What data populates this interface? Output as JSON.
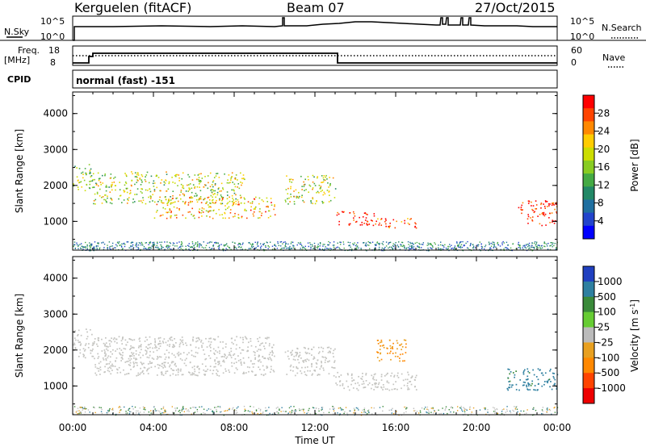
{
  "header": {
    "station": "Kerguelen (fitACF)",
    "beam": "Beam 07",
    "date": "27/Oct/2015"
  },
  "ancillary": {
    "nsky_label": "N.Sky",
    "nsearch_label": "N.Search",
    "freq_label_1": "Freq.",
    "freq_label_2": "[MHz]",
    "nave_label": "Nave",
    "cpid_label": "CPID",
    "cpid_value": "normal (fast) -151",
    "noise_left_ticks": [
      "10^5",
      "10^0"
    ],
    "noise_right_ticks": [
      "10^5",
      "10^0"
    ],
    "freq_left_ticks": [
      "18",
      "8"
    ],
    "nave_right_ticks": [
      "60",
      "0"
    ]
  },
  "colorbars": {
    "power": {
      "label": "Power [dB]",
      "ticks": [
        "28",
        "24",
        "20",
        "16",
        "12",
        "8",
        "4"
      ],
      "colors": [
        "#ff0000",
        "#ff4400",
        "#ff8800",
        "#ffcc00",
        "#ccdd00",
        "#88cc22",
        "#44aa44",
        "#228866",
        "#1f6fa0",
        "#2244cc",
        "#0000ff"
      ]
    },
    "velocity": {
      "label": "Velocity [m s",
      "label_sup": "-1",
      "label_end": "]",
      "ticks": [
        "1000",
        "500",
        "100",
        "25",
        "-25",
        "-100",
        "-500",
        "-1000"
      ],
      "colors": [
        "#2040c0",
        "#2e7fa0",
        "#3a8a3a",
        "#66cc33",
        "#bbbbbb",
        "#e8a020",
        "#ff8800",
        "#ff4400",
        "#ee0000"
      ]
    }
  },
  "chart_data": [
    {
      "type": "heatmap",
      "title": "",
      "quantity": "Power",
      "xlabel": "",
      "ylabel": "Slant Range [km]",
      "ylim": [
        200,
        4600
      ],
      "yticks": [
        "1000",
        "2000",
        "3000",
        "4000"
      ],
      "xlim": [
        "00:00",
        "24:00"
      ],
      "colorbar": "Power [dB]",
      "regions": [
        {
          "t": [
            0.0,
            1.0
          ],
          "r": [
            1800,
            2600
          ],
          "value_db": 14
        },
        {
          "t": [
            1.0,
            8.5
          ],
          "r": [
            1500,
            2400
          ],
          "value_db": 16
        },
        {
          "t": [
            4.0,
            10.0
          ],
          "r": [
            1100,
            1700
          ],
          "value_db": 20
        },
        {
          "t": [
            10.5,
            13.0
          ],
          "r": [
            1500,
            2300
          ],
          "value_db": 16
        },
        {
          "t": [
            13.0,
            15.0
          ],
          "r": [
            900,
            1300
          ],
          "value_db": 28
        },
        {
          "t": [
            15.0,
            17.0
          ],
          "r": [
            800,
            1100
          ],
          "value_db": 26
        },
        {
          "t": [
            22.0,
            24.0
          ],
          "r": [
            900,
            1600
          ],
          "value_db": 28
        }
      ]
    },
    {
      "type": "heatmap",
      "title": "",
      "quantity": "Velocity",
      "xlabel": "Time UT",
      "ylabel": "Slant Range [km]",
      "ylim": [
        200,
        4600
      ],
      "yticks": [
        "1000",
        "2000",
        "3000",
        "4000"
      ],
      "xlim": [
        "00:00",
        "24:00"
      ],
      "xticks": [
        "00:00",
        "04:00",
        "08:00",
        "12:00",
        "16:00",
        "20:00",
        "00:00"
      ],
      "colorbar": "Velocity [m s-1]",
      "regions": [
        {
          "t": [
            0.0,
            1.0
          ],
          "r": [
            1800,
            2600
          ],
          "value_ms": 0
        },
        {
          "t": [
            1.0,
            10.0
          ],
          "r": [
            1300,
            2400
          ],
          "value_ms": 0
        },
        {
          "t": [
            10.5,
            13.0
          ],
          "r": [
            1300,
            2100
          ],
          "value_ms": 0
        },
        {
          "t": [
            13.0,
            17.0
          ],
          "r": [
            900,
            1400
          ],
          "value_ms": 0
        },
        {
          "t": [
            15.0,
            16.5
          ],
          "r": [
            1700,
            2300
          ],
          "value_ms": -500
        },
        {
          "t": [
            21.5,
            24.0
          ],
          "r": [
            900,
            1500
          ],
          "value_ms": 200
        }
      ]
    }
  ]
}
